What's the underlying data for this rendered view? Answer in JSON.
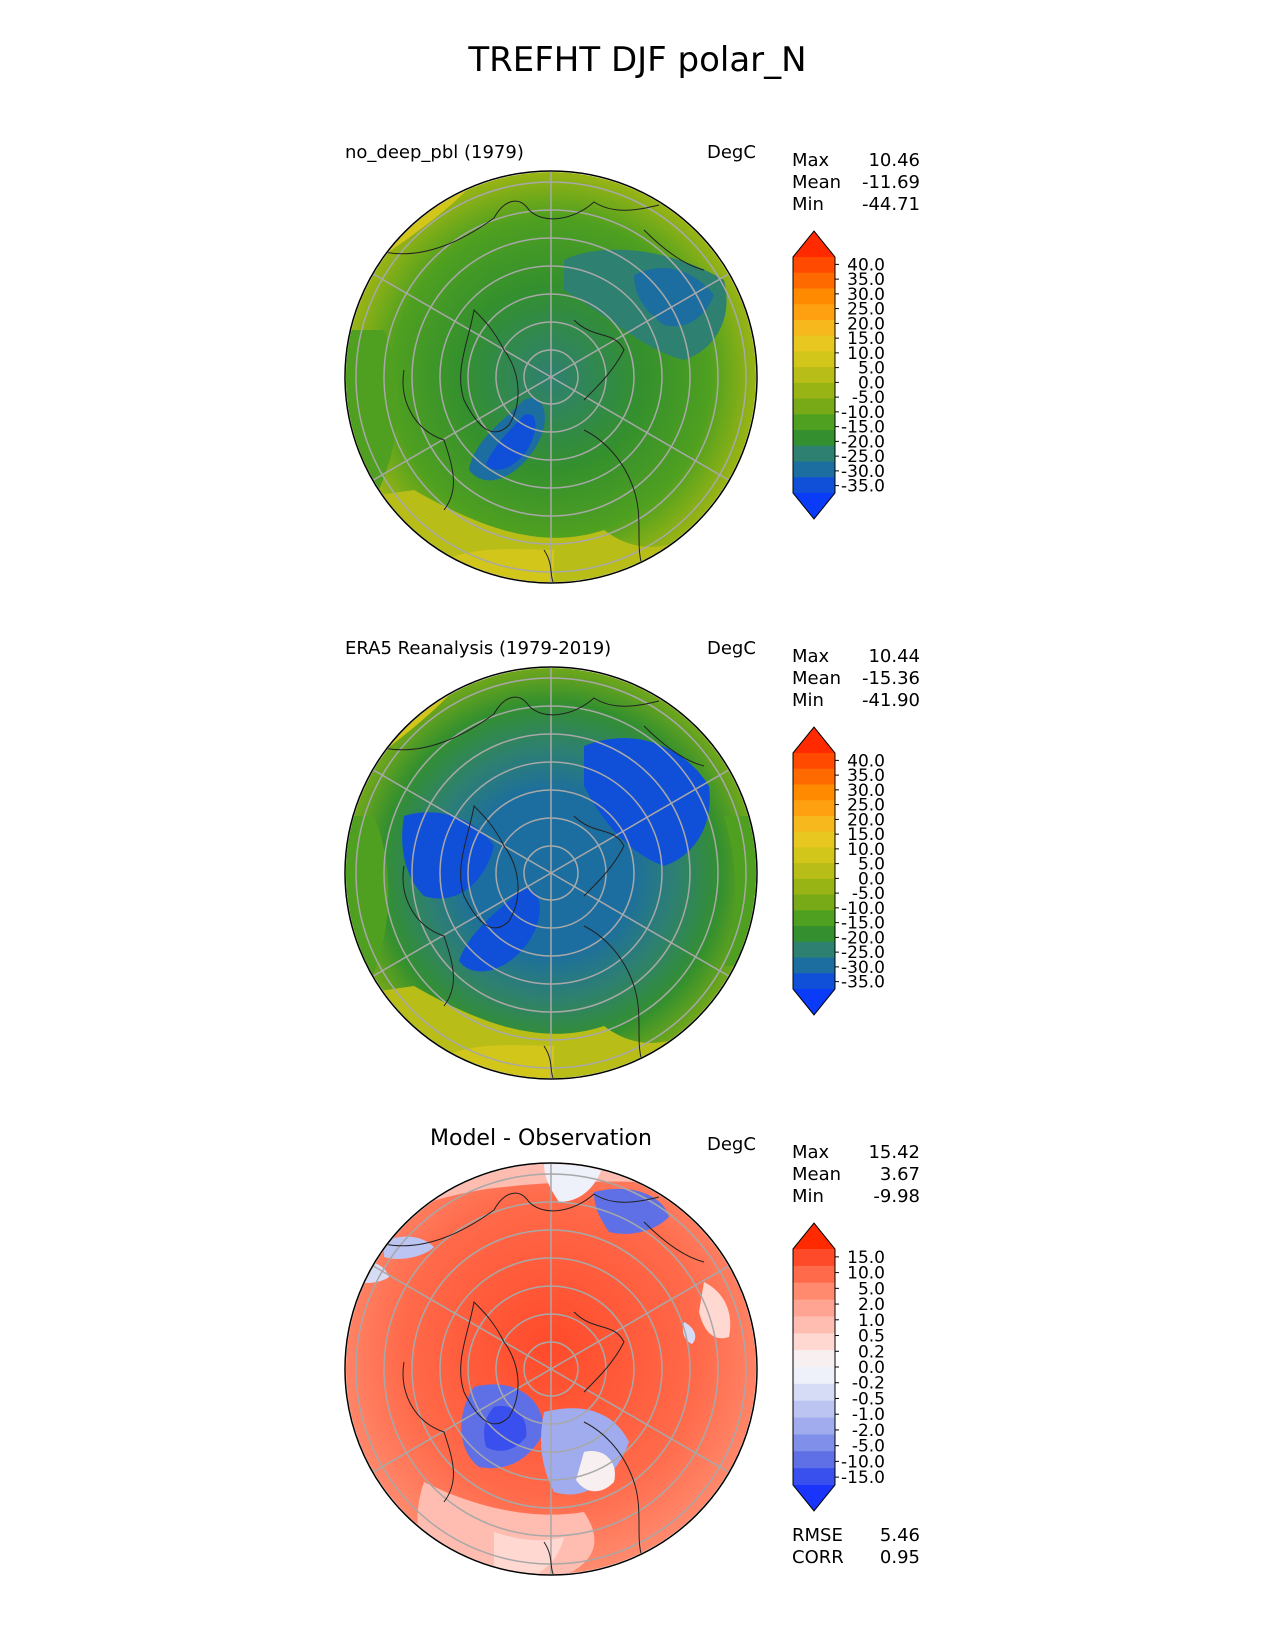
{
  "figure": {
    "title": "TREFHT DJF polar_N"
  },
  "panels": [
    {
      "title": "no_deep_pbl (1979)",
      "units": "DegC",
      "stats": [
        {
          "label": "Max",
          "value": "10.46"
        },
        {
          "label": "Mean",
          "value": "-11.69"
        },
        {
          "label": "Min",
          "value": "-44.71"
        }
      ],
      "colorbar_labels": [
        "40.0",
        "35.0",
        "30.0",
        "25.0",
        "20.0",
        "15.0",
        "10.0",
        "5.0",
        "0.0",
        "-5.0",
        "-10.0",
        "-15.0",
        "-20.0",
        "-25.0",
        "-30.0",
        "-35.0"
      ]
    },
    {
      "title": "ERA5 Reanalysis (1979-2019)",
      "units": "DegC",
      "stats": [
        {
          "label": "Max",
          "value": "10.44"
        },
        {
          "label": "Mean",
          "value": "-15.36"
        },
        {
          "label": "Min",
          "value": "-41.90"
        }
      ],
      "colorbar_labels": [
        "40.0",
        "35.0",
        "30.0",
        "25.0",
        "20.0",
        "15.0",
        "10.0",
        "5.0",
        "0.0",
        "-5.0",
        "-10.0",
        "-15.0",
        "-20.0",
        "-25.0",
        "-30.0",
        "-35.0"
      ]
    },
    {
      "title": "Model - Observation",
      "units": "DegC",
      "stats": [
        {
          "label": "Max",
          "value": "15.42"
        },
        {
          "label": "Mean",
          "value": "3.67"
        },
        {
          "label": "Min",
          "value": "-9.98"
        }
      ],
      "colorbar_labels": [
        "15.0",
        "10.0",
        "5.0",
        "2.0",
        "1.0",
        "0.5",
        "0.2",
        "0.0",
        "-0.2",
        "-0.5",
        "-1.0",
        "-2.0",
        "-5.0",
        "-10.0",
        "-15.0"
      ],
      "metrics": [
        {
          "label": "RMSE",
          "value": "5.46"
        },
        {
          "label": "CORR",
          "value": "0.95"
        }
      ]
    }
  ],
  "colors": {
    "temperature_scale": [
      "#ff2a00",
      "#ff4a00",
      "#ff6a00",
      "#ff8a00",
      "#ffa010",
      "#f7b81e",
      "#e8c820",
      "#d2c61a",
      "#b8bd18",
      "#98b414",
      "#78aa18",
      "#4fa020",
      "#34902e",
      "#2e8070",
      "#1c6ea0",
      "#1050d8",
      "#0a3cf8"
    ],
    "difference_scale": [
      "#ff2a00",
      "#ff4a2a",
      "#ff6a4a",
      "#ff8a6e",
      "#ffa392",
      "#ffbdb1",
      "#ffd8d2",
      "#f8f0f0",
      "#eef0fa",
      "#d7dcf6",
      "#bcc4f2",
      "#a0acee",
      "#8090ea",
      "#5f70e6",
      "#3a50ee",
      "#1a34fc"
    ]
  }
}
